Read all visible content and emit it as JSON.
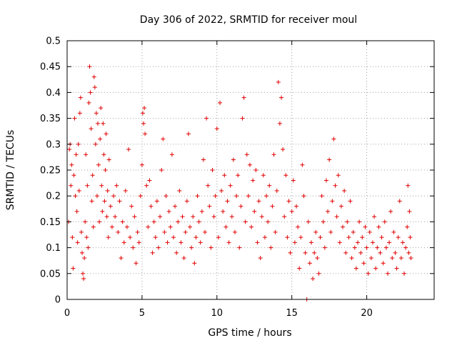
{
  "chart_data": {
    "type": "scatter",
    "title": "Day 306 of 2022, SRMTID for receiver moul",
    "xlabel": "GPS time / hours",
    "ylabel": "SRMTID / TECUs",
    "xlim": [
      0,
      24.5
    ],
    "ylim": [
      0,
      0.5
    ],
    "grid": true,
    "marker": "plus",
    "color": "#e00000",
    "x_ticks": [
      0,
      5,
      10,
      15,
      20
    ],
    "x_tick_labels": [
      "0",
      "5",
      "10",
      "15",
      "20"
    ],
    "y_ticks": [
      0,
      0.05,
      0.1,
      0.15,
      0.2,
      0.25,
      0.3,
      0.35,
      0.4,
      0.45,
      0.5
    ],
    "y_tick_labels": [
      "0",
      "0.05",
      "0.1",
      "0.15",
      "0.2",
      "0.25",
      "0.3",
      "0.35",
      "0.4",
      "0.45",
      "0.5"
    ],
    "series": [
      {
        "name": "SRMTID",
        "points": [
          [
            0.1,
            0.15
          ],
          [
            0.15,
            0.29
          ],
          [
            0.2,
            0.3
          ],
          [
            0.25,
            0.22
          ],
          [
            0.3,
            0.26
          ],
          [
            0.35,
            0.12
          ],
          [
            0.4,
            0.06
          ],
          [
            0.45,
            0.24
          ],
          [
            0.5,
            0.35
          ],
          [
            0.55,
            0.2
          ],
          [
            0.6,
            0.28
          ],
          [
            0.65,
            0.17
          ],
          [
            0.7,
            0.11
          ],
          [
            0.75,
            0.3
          ],
          [
            0.8,
            0.21
          ],
          [
            0.85,
            0.36
          ],
          [
            0.9,
            0.39
          ],
          [
            0.95,
            0.13
          ],
          [
            1.0,
            0.09
          ],
          [
            1.05,
            0.05
          ],
          [
            1.1,
            0.04
          ],
          [
            1.15,
            0.08
          ],
          [
            1.2,
            0.15
          ],
          [
            1.25,
            0.28
          ],
          [
            1.3,
            0.12
          ],
          [
            1.35,
            0.22
          ],
          [
            1.4,
            0.1
          ],
          [
            1.45,
            0.38
          ],
          [
            1.5,
            0.45
          ],
          [
            1.55,
            0.4
          ],
          [
            1.6,
            0.33
          ],
          [
            1.65,
            0.19
          ],
          [
            1.7,
            0.24
          ],
          [
            1.75,
            0.14
          ],
          [
            1.8,
            0.43
          ],
          [
            1.85,
            0.41
          ],
          [
            1.9,
            0.3
          ],
          [
            1.95,
            0.36
          ],
          [
            2.0,
            0.2
          ],
          [
            2.05,
            0.34
          ],
          [
            2.1,
            0.26
          ],
          [
            2.15,
            0.15
          ],
          [
            2.2,
            0.31
          ],
          [
            2.25,
            0.37
          ],
          [
            2.3,
            0.22
          ],
          [
            2.35,
            0.17
          ],
          [
            2.4,
            0.34
          ],
          [
            2.45,
            0.28
          ],
          [
            2.5,
            0.19
          ],
          [
            2.55,
            0.25
          ],
          [
            2.6,
            0.32
          ],
          [
            2.65,
            0.16
          ],
          [
            2.7,
            0.21
          ],
          [
            2.75,
            0.12
          ],
          [
            2.8,
            0.27
          ],
          [
            2.9,
            0.18
          ],
          [
            3.0,
            0.14
          ],
          [
            3.1,
            0.2
          ],
          [
            3.2,
            0.16
          ],
          [
            3.3,
            0.22
          ],
          [
            3.4,
            0.13
          ],
          [
            3.5,
            0.19
          ],
          [
            3.6,
            0.08
          ],
          [
            3.7,
            0.15
          ],
          [
            3.8,
            0.11
          ],
          [
            3.9,
            0.21
          ],
          [
            4.0,
            0.14
          ],
          [
            4.1,
            0.29
          ],
          [
            4.2,
            0.12
          ],
          [
            4.3,
            0.18
          ],
          [
            4.4,
            0.1
          ],
          [
            4.5,
            0.16
          ],
          [
            4.6,
            0.07
          ],
          [
            4.7,
            0.13
          ],
          [
            4.8,
            0.11
          ],
          [
            4.9,
            0.2
          ],
          [
            5.0,
            0.26
          ],
          [
            5.05,
            0.36
          ],
          [
            5.1,
            0.34
          ],
          [
            5.15,
            0.37
          ],
          [
            5.2,
            0.32
          ],
          [
            5.3,
            0.22
          ],
          [
            5.4,
            0.14
          ],
          [
            5.5,
            0.23
          ],
          [
            5.6,
            0.18
          ],
          [
            5.7,
            0.09
          ],
          [
            5.8,
            0.15
          ],
          [
            5.9,
            0.12
          ],
          [
            6.0,
            0.19
          ],
          [
            6.1,
            0.1
          ],
          [
            6.2,
            0.16
          ],
          [
            6.3,
            0.25
          ],
          [
            6.4,
            0.31
          ],
          [
            6.5,
            0.13
          ],
          [
            6.6,
            0.2
          ],
          [
            6.7,
            0.11
          ],
          [
            6.8,
            0.17
          ],
          [
            6.9,
            0.14
          ],
          [
            7.0,
            0.28
          ],
          [
            7.1,
            0.12
          ],
          [
            7.2,
            0.18
          ],
          [
            7.3,
            0.09
          ],
          [
            7.4,
            0.15
          ],
          [
            7.5,
            0.21
          ],
          [
            7.6,
            0.11
          ],
          [
            7.7,
            0.16
          ],
          [
            7.8,
            0.08
          ],
          [
            7.9,
            0.13
          ],
          [
            8.0,
            0.19
          ],
          [
            8.1,
            0.32
          ],
          [
            8.2,
            0.14
          ],
          [
            8.3,
            0.1
          ],
          [
            8.4,
            0.16
          ],
          [
            8.5,
            0.07
          ],
          [
            8.6,
            0.12
          ],
          [
            8.7,
            0.2
          ],
          [
            8.8,
            0.15
          ],
          [
            8.9,
            0.11
          ],
          [
            9.0,
            0.17
          ],
          [
            9.1,
            0.27
          ],
          [
            9.2,
            0.13
          ],
          [
            9.3,
            0.35
          ],
          [
            9.4,
            0.22
          ],
          [
            9.5,
            0.18
          ],
          [
            9.6,
            0.1
          ],
          [
            9.7,
            0.25
          ],
          [
            9.8,
            0.16
          ],
          [
            9.9,
            0.2
          ],
          [
            10.0,
            0.33
          ],
          [
            10.1,
            0.12
          ],
          [
            10.2,
            0.38
          ],
          [
            10.3,
            0.21
          ],
          [
            10.4,
            0.17
          ],
          [
            10.5,
            0.24
          ],
          [
            10.6,
            0.14
          ],
          [
            10.7,
            0.19
          ],
          [
            10.8,
            0.11
          ],
          [
            10.9,
            0.22
          ],
          [
            11.0,
            0.16
          ],
          [
            11.1,
            0.27
          ],
          [
            11.2,
            0.13
          ],
          [
            11.3,
            0.2
          ],
          [
            11.4,
            0.24
          ],
          [
            11.5,
            0.1
          ],
          [
            11.6,
            0.18
          ],
          [
            11.7,
            0.35
          ],
          [
            11.8,
            0.39
          ],
          [
            11.9,
            0.15
          ],
          [
            12.0,
            0.28
          ],
          [
            12.1,
            0.2
          ],
          [
            12.2,
            0.26
          ],
          [
            12.3,
            0.14
          ],
          [
            12.4,
            0.23
          ],
          [
            12.5,
            0.17
          ],
          [
            12.6,
            0.25
          ],
          [
            12.7,
            0.11
          ],
          [
            12.8,
            0.19
          ],
          [
            12.9,
            0.08
          ],
          [
            13.0,
            0.16
          ],
          [
            13.1,
            0.24
          ],
          [
            13.2,
            0.12
          ],
          [
            13.3,
            0.2
          ],
          [
            13.4,
            0.15
          ],
          [
            13.5,
            0.22
          ],
          [
            13.6,
            0.1
          ],
          [
            13.7,
            0.18
          ],
          [
            13.8,
            0.28
          ],
          [
            13.9,
            0.13
          ],
          [
            14.0,
            0.21
          ],
          [
            14.1,
            0.42
          ],
          [
            14.2,
            0.34
          ],
          [
            14.3,
            0.39
          ],
          [
            14.4,
            0.29
          ],
          [
            14.5,
            0.16
          ],
          [
            14.6,
            0.24
          ],
          [
            14.7,
            0.12
          ],
          [
            14.8,
            0.19
          ],
          [
            14.9,
            0.09
          ],
          [
            15.0,
            0.17
          ],
          [
            15.1,
            0.23
          ],
          [
            15.2,
            0.11
          ],
          [
            15.3,
            0.18
          ],
          [
            15.4,
            0.14
          ],
          [
            15.5,
            0.06
          ],
          [
            15.6,
            0.12
          ],
          [
            15.7,
            0.26
          ],
          [
            15.8,
            0.2
          ],
          [
            15.9,
            0.09
          ],
          [
            16.0,
            0.0
          ],
          [
            16.1,
            0.15
          ],
          [
            16.2,
            0.07
          ],
          [
            16.3,
            0.11
          ],
          [
            16.4,
            0.04
          ],
          [
            16.5,
            0.09
          ],
          [
            16.6,
            0.13
          ],
          [
            16.7,
            0.08
          ],
          [
            16.8,
            0.05
          ],
          [
            16.9,
            0.12
          ],
          [
            17.0,
            0.2
          ],
          [
            17.1,
            0.15
          ],
          [
            17.2,
            0.1
          ],
          [
            17.3,
            0.23
          ],
          [
            17.4,
            0.17
          ],
          [
            17.5,
            0.27
          ],
          [
            17.6,
            0.13
          ],
          [
            17.7,
            0.19
          ],
          [
            17.8,
            0.31
          ],
          [
            17.9,
            0.22
          ],
          [
            18.0,
            0.16
          ],
          [
            18.1,
            0.24
          ],
          [
            18.2,
            0.11
          ],
          [
            18.3,
            0.18
          ],
          [
            18.4,
            0.14
          ],
          [
            18.5,
            0.21
          ],
          [
            18.6,
            0.09
          ],
          [
            18.7,
            0.15
          ],
          [
            18.8,
            0.12
          ],
          [
            18.9,
            0.19
          ],
          [
            19.0,
            0.08
          ],
          [
            19.1,
            0.13
          ],
          [
            19.2,
            0.1
          ],
          [
            19.3,
            0.06
          ],
          [
            19.4,
            0.11
          ],
          [
            19.5,
            0.15
          ],
          [
            19.6,
            0.09
          ],
          [
            19.7,
            0.12
          ],
          [
            19.8,
            0.07
          ],
          [
            19.9,
            0.14
          ],
          [
            20.0,
            0.1
          ],
          [
            20.1,
            0.05
          ],
          [
            20.2,
            0.13
          ],
          [
            20.3,
            0.08
          ],
          [
            20.4,
            0.11
          ],
          [
            20.5,
            0.16
          ],
          [
            20.6,
            0.06
          ],
          [
            20.7,
            0.1
          ],
          [
            20.8,
            0.14
          ],
          [
            20.9,
            0.09
          ],
          [
            21.0,
            0.12
          ],
          [
            21.1,
            0.07
          ],
          [
            21.2,
            0.15
          ],
          [
            21.3,
            0.1
          ],
          [
            21.4,
            0.05
          ],
          [
            21.5,
            0.11
          ],
          [
            21.6,
            0.17
          ],
          [
            21.7,
            0.08
          ],
          [
            21.8,
            0.13
          ],
          [
            21.9,
            0.09
          ],
          [
            22.0,
            0.06
          ],
          [
            22.1,
            0.12
          ],
          [
            22.2,
            0.19
          ],
          [
            22.3,
            0.08
          ],
          [
            22.4,
            0.11
          ],
          [
            22.5,
            0.05
          ],
          [
            22.6,
            0.1
          ],
          [
            22.7,
            0.14
          ],
          [
            22.75,
            0.22
          ],
          [
            22.8,
            0.09
          ],
          [
            22.85,
            0.17
          ],
          [
            22.9,
            0.12
          ],
          [
            22.95,
            0.08
          ]
        ]
      }
    ]
  }
}
